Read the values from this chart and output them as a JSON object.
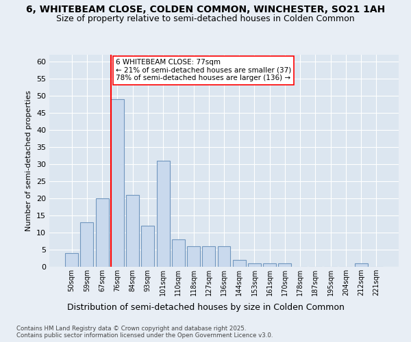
{
  "title": "6, WHITEBEAM CLOSE, COLDEN COMMON, WINCHESTER, SO21 1AH",
  "subtitle": "Size of property relative to semi-detached houses in Colden Common",
  "xlabel": "Distribution of semi-detached houses by size in Colden Common",
  "ylabel": "Number of semi-detached properties",
  "categories": [
    "50sqm",
    "59sqm",
    "67sqm",
    "76sqm",
    "84sqm",
    "93sqm",
    "101sqm",
    "110sqm",
    "118sqm",
    "127sqm",
    "136sqm",
    "144sqm",
    "153sqm",
    "161sqm",
    "170sqm",
    "178sqm",
    "187sqm",
    "195sqm",
    "204sqm",
    "212sqm",
    "221sqm"
  ],
  "values": [
    4,
    13,
    20,
    49,
    21,
    12,
    31,
    8,
    6,
    6,
    6,
    2,
    1,
    1,
    1,
    0,
    0,
    0,
    0,
    1,
    0
  ],
  "bar_color": "#c9d9ed",
  "bar_edge_color": "#7096be",
  "highlight_bar_index": 3,
  "annotation_text_line1": "6 WHITEBEAM CLOSE: 77sqm",
  "annotation_text_line2": "← 21% of semi-detached houses are smaller (37)",
  "annotation_text_line3": "78% of semi-detached houses are larger (136) →",
  "ylim": [
    0,
    62
  ],
  "yticks": [
    0,
    5,
    10,
    15,
    20,
    25,
    30,
    35,
    40,
    45,
    50,
    55,
    60
  ],
  "bg_color": "#e8eef5",
  "plot_bg_color": "#dce6f0",
  "grid_color": "#ffffff",
  "footer_line1": "Contains HM Land Registry data © Crown copyright and database right 2025.",
  "footer_line2": "Contains public sector information licensed under the Open Government Licence v3.0."
}
